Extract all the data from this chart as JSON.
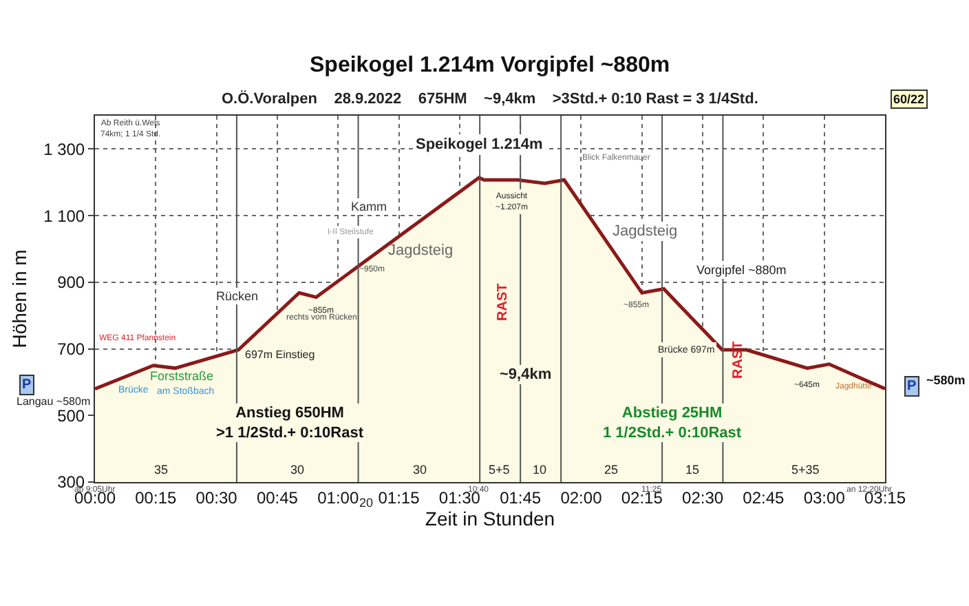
{
  "chart_data": {
    "type": "area",
    "title": "Speikogel 1.214m Vorgipfel ~880m",
    "subtitle": "O.Ö.Voralpen    28.9.2022    675HM    ~9,4km    >3Std.+ 0:10 Rast = 3 1/4Std.",
    "xlabel": "Zeit in Stunden",
    "ylabel": "Höhen in m",
    "x": [
      0,
      0.24,
      0.33,
      0.59,
      0.84,
      0.91,
      1.58,
      1.6,
      1.74,
      1.85,
      1.93,
      2.25,
      2.34,
      2.58,
      2.68,
      2.93,
      3.02,
      3.25
    ],
    "series": [
      {
        "color": "#8b1a1a",
        "values": [
          580,
          650,
          642,
          697,
          868,
          855,
          1214,
          1207,
          1207,
          1197,
          1207,
          868,
          880,
          697,
          697,
          642,
          654,
          580
        ]
      }
    ],
    "xlim": [
      0,
      3.25
    ],
    "xticks": [
      {
        "value": 0,
        "label": "00:00"
      },
      {
        "value": 0.25,
        "label": "00:15"
      },
      {
        "value": 0.5,
        "label": "00:30"
      },
      {
        "value": 0.75,
        "label": "00:45"
      },
      {
        "value": 1,
        "label": "01:00"
      },
      {
        "value": 1.25,
        "label": "01:15"
      },
      {
        "value": 1.5,
        "label": "01:30"
      },
      {
        "value": 1.75,
        "label": "01:45"
      },
      {
        "value": 2,
        "label": "02:00"
      },
      {
        "value": 2.25,
        "label": "02:15"
      },
      {
        "value": 2.5,
        "label": "02:30"
      },
      {
        "value": 2.75,
        "label": "02:45"
      },
      {
        "value": 3,
        "label": "03:00"
      },
      {
        "value": 3.25,
        "label": "03:15"
      }
    ],
    "ylim": [
      300,
      1400
    ],
    "yticks": [
      300,
      500,
      700,
      900,
      {
        "value": 1100,
        "label": "1 100"
      },
      {
        "value": 1300,
        "label": "1 300"
      }
    ],
    "grid": true,
    "ref_lines": [
      {
        "axis": "x",
        "value": 0.583,
        "color": "#555555"
      },
      {
        "axis": "x",
        "value": 1.083,
        "color": "#555555"
      },
      {
        "axis": "x",
        "value": 1.583,
        "color": "#555555"
      },
      {
        "axis": "x",
        "value": 1.75,
        "color": "#555555"
      },
      {
        "axis": "x",
        "value": 1.917,
        "color": "#555555"
      },
      {
        "axis": "x",
        "value": 2.333,
        "color": "#555555"
      },
      {
        "axis": "x",
        "value": 2.583,
        "color": "#555555"
      }
    ],
    "annotations": [
      "60/22",
      "RAST",
      "RAST",
      "Ab Reith ü.Wels\n74km; 1 1/4 Std.",
      "Blick Falkenmauer",
      "Kamm",
      "I-II Steilstufe",
      "Jagdsteig",
      "~950m",
      "Rücken",
      "rechts vom Rücken",
      "WEG 411 Pfannstein",
      "Brücke",
      "Forststraße",
      "am Stoßbach",
      "P",
      "P",
      "Jagdsteig",
      "~855m",
      "Jagdhütte",
      "~9,4km",
      "Anstieg 650HM\n>1 1/2Std.+ 0:10Rast",
      "Abstieg 25HM\n1 1/2Std.+ 0:10Rast",
      "35",
      "30",
      "30",
      "5+5",
      "10",
      "25",
      "15",
      "5+35",
      "ab 9:05Uhr",
      "20",
      "10:40",
      "11:25",
      "an 12:20Uhr",
      "~580m",
      {
        "text": "Speikogel 1.214m",
        "x": 1.58,
        "y": 1214
      },
      {
        "text": "Aussicht\n~1.207m",
        "x": 1.6,
        "y": 1207
      },
      {
        "text": "~855m",
        "x": 0.91,
        "y": 855
      },
      {
        "text": "697m Einstieg",
        "x": 0.59,
        "y": 697
      },
      {
        "text": "Langau ~580m",
        "x": 0,
        "y": 580
      },
      {
        "text": "Vorgipfel ~880m",
        "x": 2.34,
        "y": 880
      },
      {
        "text": "Brücke 697m",
        "x": 2.58,
        "y": 697
      },
      {
        "text": "~645m",
        "x": 2.93,
        "y": 642
      }
    ]
  }
}
